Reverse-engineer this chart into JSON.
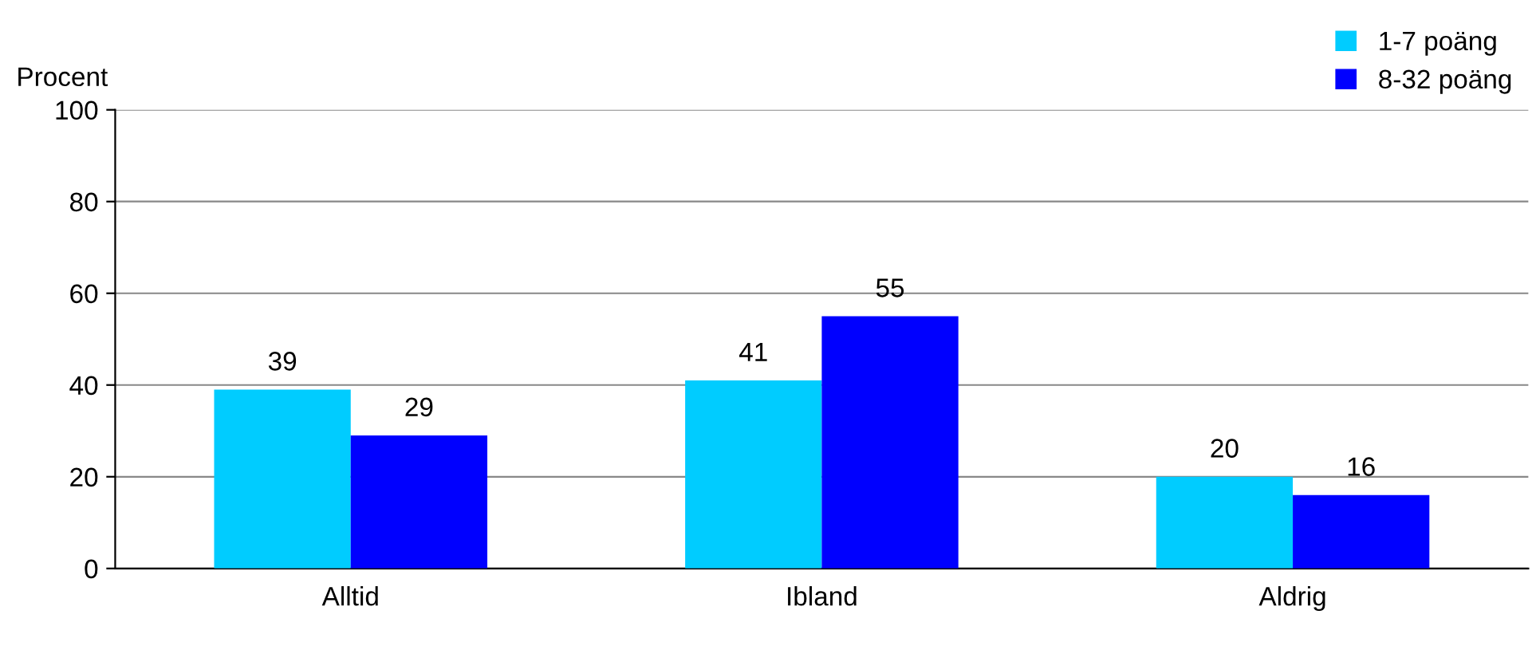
{
  "chart_data": {
    "type": "bar",
    "ylabel": "Procent",
    "categories": [
      "Alltid",
      "Ibland",
      "Aldrig"
    ],
    "series": [
      {
        "name": "1-7 poäng",
        "color": "#00ccff",
        "values": [
          39,
          41,
          20
        ]
      },
      {
        "name": "8-32 poäng",
        "color": "#0000ff",
        "values": [
          29,
          55,
          16
        ]
      }
    ],
    "ylim": [
      0,
      100
    ],
    "yticks": [
      0,
      20,
      40,
      60,
      80,
      100
    ],
    "grid": "y",
    "legend": "top right",
    "data_labels": true
  }
}
